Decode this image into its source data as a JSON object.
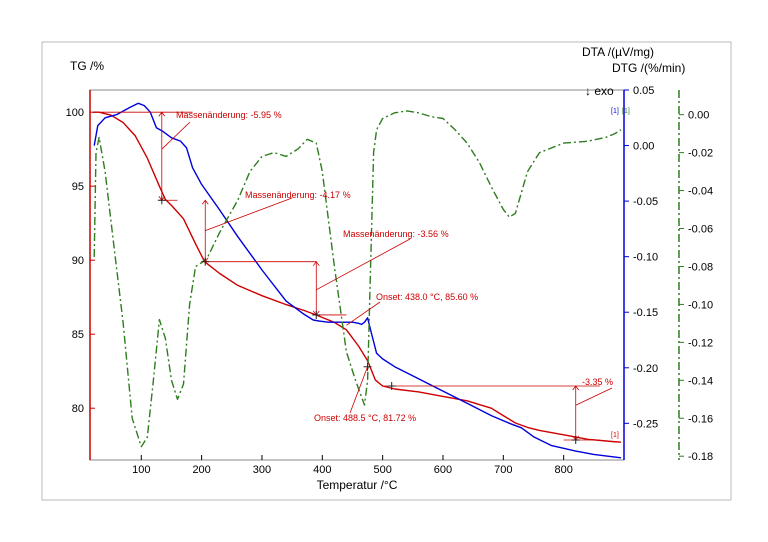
{
  "chart_data": {
    "type": "line",
    "title": "",
    "xlabel": "Temperatur /°C",
    "xlim": [
      15,
      900
    ],
    "xticks": [
      100,
      200,
      300,
      400,
      500,
      600,
      700,
      800
    ],
    "axes": {
      "tg": {
        "label": "TG /%",
        "ylim": [
          76.5,
          101.5
        ],
        "ticks": [
          80,
          85,
          90,
          95,
          100
        ],
        "color": "#cc0000"
      },
      "dta": {
        "label": "DTA /(µV/mg)",
        "ylim": [
          -0.283,
          0.05
        ],
        "ticks": [
          0.05,
          0.0,
          -0.05,
          -0.1,
          -0.15,
          -0.2,
          -0.25
        ],
        "color": "#0000dd"
      },
      "dtg": {
        "label": "DTG /(%/min)",
        "ylim": [
          -0.182,
          0.013
        ],
        "ticks": [
          0.0,
          -0.02,
          -0.04,
          -0.06,
          -0.08,
          -0.1,
          -0.12,
          -0.14,
          -0.16,
          -0.18
        ],
        "color": "#2e7d1f"
      }
    },
    "exo_label": "↓ exo",
    "curve_tags": {
      "dta": "[1]",
      "dtg": "[1]",
      "tg": "[1]"
    },
    "series": [
      {
        "key": "tg",
        "axis": "tg",
        "color": "#cc0000",
        "dash": "",
        "x": [
          20,
          30,
          50,
          70,
          90,
          110,
          130,
          140,
          150,
          170,
          190,
          205,
          230,
          260,
          300,
          340,
          370,
          390,
          420,
          440,
          460,
          475,
          488,
          500,
          520,
          560,
          600,
          640,
          680,
          700,
          720,
          740,
          760,
          800,
          840,
          880,
          895
        ],
        "y": [
          100.0,
          100.0,
          99.8,
          99.3,
          98.4,
          96.9,
          95.0,
          94.1,
          93.7,
          92.8,
          91.1,
          89.9,
          89.1,
          88.3,
          87.6,
          87.0,
          86.6,
          86.3,
          85.8,
          85.3,
          84.2,
          83.2,
          81.9,
          81.5,
          81.3,
          81.1,
          80.8,
          80.5,
          80.0,
          79.5,
          79.0,
          78.7,
          78.5,
          78.2,
          77.9,
          77.75,
          77.7
        ]
      },
      {
        "key": "dta",
        "axis": "dta",
        "color": "#0000dd",
        "dash": "",
        "x": [
          22,
          28,
          40,
          60,
          80,
          95,
          105,
          115,
          125,
          135,
          150,
          165,
          175,
          185,
          200,
          230,
          260,
          300,
          340,
          370,
          385,
          395,
          410,
          430,
          450,
          460,
          465,
          470,
          475,
          480,
          490,
          500,
          520,
          560,
          600,
          640,
          680,
          710,
          730,
          750,
          780,
          820,
          850,
          880,
          895
        ],
        "y": [
          0.0,
          0.018,
          0.025,
          0.028,
          0.034,
          0.038,
          0.036,
          0.03,
          0.016,
          0.013,
          0.007,
          0.004,
          -0.002,
          -0.02,
          -0.035,
          -0.058,
          -0.082,
          -0.112,
          -0.14,
          -0.152,
          -0.157,
          -0.158,
          -0.159,
          -0.159,
          -0.159,
          -0.16,
          -0.161,
          -0.159,
          -0.155,
          -0.166,
          -0.187,
          -0.192,
          -0.199,
          -0.21,
          -0.221,
          -0.232,
          -0.243,
          -0.25,
          -0.254,
          -0.262,
          -0.27,
          -0.275,
          -0.278,
          -0.28,
          -0.281
        ]
      },
      {
        "key": "dtg",
        "axis": "dtg",
        "color": "#2e7d1f",
        "dash": "8,3,2,3",
        "x": [
          22,
          25,
          30,
          40,
          55,
          70,
          85,
          100,
          110,
          120,
          130,
          140,
          150,
          160,
          170,
          180,
          190,
          200,
          210,
          230,
          260,
          280,
          300,
          320,
          340,
          360,
          375,
          390,
          400,
          420,
          440,
          455,
          470,
          475,
          480,
          485,
          490,
          500,
          520,
          540,
          560,
          580,
          600,
          620,
          640,
          660,
          680,
          700,
          710,
          720,
          740,
          760,
          800,
          840,
          870,
          885,
          895
        ],
        "y": [
          -0.075,
          -0.02,
          -0.012,
          -0.03,
          -0.07,
          -0.11,
          -0.16,
          -0.175,
          -0.17,
          -0.14,
          -0.108,
          -0.118,
          -0.14,
          -0.15,
          -0.142,
          -0.1,
          -0.08,
          -0.078,
          -0.075,
          -0.062,
          -0.045,
          -0.03,
          -0.022,
          -0.02,
          -0.022,
          -0.018,
          -0.013,
          -0.015,
          -0.03,
          -0.08,
          -0.125,
          -0.14,
          -0.153,
          -0.14,
          -0.08,
          -0.02,
          -0.008,
          -0.002,
          0.001,
          0.002,
          0.001,
          -0.001,
          -0.002,
          -0.008,
          -0.015,
          -0.025,
          -0.038,
          -0.05,
          -0.054,
          -0.052,
          -0.03,
          -0.02,
          -0.015,
          -0.014,
          -0.012,
          -0.01,
          -0.008
        ]
      }
    ],
    "annotations": [
      {
        "text": "Massenänderung: -5.95 %",
        "color": "#cc0000"
      },
      {
        "text": "Massenänderung: -4.17 %",
        "color": "#cc0000"
      },
      {
        "text": "Massenänderung: -3.56 %",
        "color": "#cc0000"
      },
      {
        "text": "Onset: 438.0 °C, 85.60 %",
        "color": "#cc0000"
      },
      {
        "text": "Onset: 488.5 °C, 81.72 %",
        "color": "#cc0000"
      },
      {
        "text": "-3.35 %",
        "color": "#cc0000"
      }
    ]
  }
}
